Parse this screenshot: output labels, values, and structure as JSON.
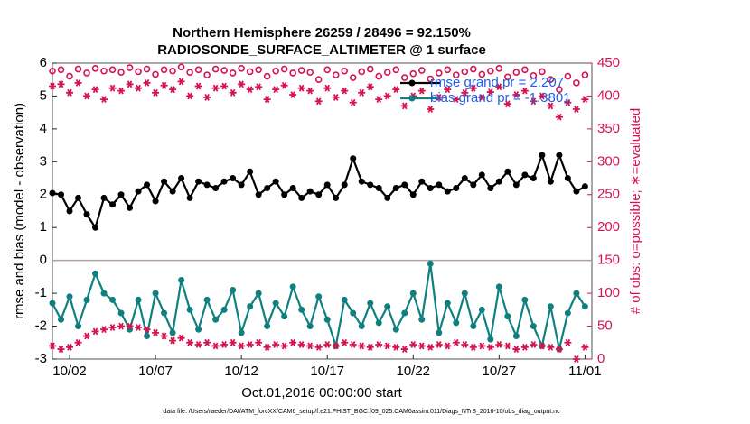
{
  "chart_data": {
    "type": "line",
    "title": "Northern Hemisphere 26259 / 28496 = 92.150%",
    "subtitle": "RADIOSONDE_SURFACE_ALTIMETER @ 1 surface",
    "xlabel": "Oct.01,2016 00:00:00 start",
    "ylabel": "rmse and bias (model - observation)",
    "y2label": "# of obs: o=possible; ∗=evaluated",
    "footnote": "data file: /Users/raeder/DAI/ATM_forcXX/CAM6_setup/f.e21.FHIST_BGC.f09_025.CAM6assim.011/Diags_NTrS_2016-10/obs_diag_output.nc",
    "x": [
      0,
      0.5,
      1,
      1.5,
      2,
      2.5,
      3,
      3.5,
      4,
      4.5,
      5,
      5.5,
      6,
      6.5,
      7,
      7.5,
      8,
      8.5,
      9,
      9.5,
      10,
      10.5,
      11,
      11.5,
      12,
      12.5,
      13,
      13.5,
      14,
      14.5,
      15,
      15.5,
      16,
      16.5,
      17,
      17.5,
      18,
      18.5,
      19,
      19.5,
      20,
      20.5,
      21,
      21.5,
      22,
      22.5,
      23,
      23.5,
      24,
      24.5,
      25,
      25.5,
      26,
      26.5,
      27,
      27.5,
      28,
      28.5,
      29,
      29.5,
      30,
      30.5,
      31
    ],
    "xlim": [
      0,
      31.4
    ],
    "xticks": [
      {
        "value": 1,
        "label": "10/02"
      },
      {
        "value": 6,
        "label": "10/07"
      },
      {
        "value": 11,
        "label": "10/12"
      },
      {
        "value": 16,
        "label": "10/17"
      },
      {
        "value": 21,
        "label": "10/22"
      },
      {
        "value": 26,
        "label": "10/27"
      },
      {
        "value": 31,
        "label": "11/01"
      }
    ],
    "ylim": [
      -3,
      6
    ],
    "yticks": [
      -3,
      -2,
      -1,
      0,
      1,
      2,
      3,
      4,
      5,
      6
    ],
    "y2lim": [
      0,
      450
    ],
    "y2ticks": [
      0,
      50,
      100,
      150,
      200,
      250,
      300,
      350,
      400,
      450
    ],
    "hline": 0,
    "legend": "upper right",
    "series": [
      {
        "name": "rmse grand pr = 2.207",
        "color": "#000000",
        "marker": "o-",
        "values": [
          2.05,
          2.0,
          1.5,
          1.9,
          1.4,
          1.0,
          1.9,
          1.7,
          2.0,
          1.6,
          2.1,
          2.3,
          1.8,
          2.4,
          2.1,
          2.5,
          1.9,
          2.4,
          2.3,
          2.2,
          2.4,
          2.5,
          2.3,
          2.7,
          2.0,
          2.2,
          2.4,
          2.0,
          2.2,
          1.9,
          2.1,
          2.0,
          2.3,
          1.9,
          2.3,
          3.1,
          2.4,
          2.3,
          2.2,
          1.9,
          2.2,
          2.3,
          2.0,
          2.4,
          2.2,
          2.3,
          2.1,
          2.2,
          2.5,
          2.3,
          2.6,
          2.2,
          2.4,
          2.7,
          2.3,
          2.6,
          2.5,
          3.2,
          2.4,
          3.2,
          2.5,
          2.1,
          2.25
        ]
      },
      {
        "name": "bias grand pr = -1.3801",
        "color": "#0f7f7f",
        "marker": "o-",
        "values": [
          -1.3,
          -1.8,
          -1.1,
          -2.0,
          -1.2,
          -0.4,
          -1.0,
          -1.2,
          -1.6,
          -2.1,
          -1.2,
          -2.3,
          -1.0,
          -1.6,
          -2.2,
          -0.6,
          -1.5,
          -2.1,
          -1.2,
          -1.8,
          -1.5,
          -0.9,
          -2.2,
          -1.4,
          -1.0,
          -2.0,
          -1.3,
          -1.7,
          -0.8,
          -1.5,
          -2.0,
          -1.1,
          -1.8,
          -2.6,
          -1.2,
          -1.6,
          -2.0,
          -1.3,
          -1.9,
          -1.4,
          -2.1,
          -1.6,
          -1.0,
          -1.8,
          -0.1,
          -2.2,
          -1.3,
          -1.9,
          -1.0,
          -2.0,
          -1.5,
          -2.4,
          -0.8,
          -1.7,
          -2.3,
          -1.2,
          -2.0,
          -2.6,
          -1.4,
          -2.7,
          -1.6,
          -1.0,
          -1.4
        ]
      },
      {
        "color": "#d6134f",
        "marker": "o",
        "axis": "y2",
        "values": [
          438,
          440,
          430,
          441,
          435,
          442,
          438,
          440,
          436,
          443,
          437,
          441,
          433,
          440,
          438,
          444,
          436,
          440,
          432,
          441,
          439,
          435,
          442,
          437,
          440,
          430,
          438,
          441,
          435,
          439,
          436,
          425,
          440,
          432,
          438,
          428,
          437,
          441,
          430,
          436,
          440,
          428,
          434,
          439,
          426,
          435,
          440,
          432,
          437,
          441,
          433,
          438,
          442,
          429,
          436,
          440,
          431,
          437,
          425,
          410,
          430,
          420,
          432
        ]
      },
      {
        "color": "#d6134f",
        "marker": "*",
        "axis": "y2",
        "values": [
          415,
          418,
          405,
          420,
          400,
          410,
          395,
          412,
          408,
          418,
          412,
          420,
          405,
          416,
          410,
          422,
          400,
          415,
          398,
          412,
          415,
          405,
          418,
          410,
          414,
          395,
          410,
          416,
          402,
          412,
          408,
          392,
          412,
          398,
          408,
          390,
          405,
          414,
          395,
          400,
          410,
          385,
          400,
          408,
          380,
          398,
          410,
          395,
          405,
          412,
          398,
          406,
          414,
          388,
          402,
          408,
          392,
          400,
          385,
          368,
          390,
          380,
          395
        ]
      },
      {
        "color": "#d6134f",
        "marker": "*",
        "axis": "y2",
        "values": [
          20,
          15,
          18,
          25,
          35,
          42,
          45,
          48,
          50,
          50,
          48,
          45,
          40,
          35,
          28,
          32,
          25,
          22,
          25,
          20,
          22,
          25,
          20,
          22,
          25,
          18,
          22,
          20,
          25,
          22,
          20,
          18,
          22,
          20,
          25,
          22,
          20,
          18,
          22,
          20,
          18,
          15,
          22,
          20,
          18,
          22,
          20,
          25,
          22,
          18,
          20,
          18,
          22,
          20,
          15,
          18,
          22,
          20,
          18,
          15,
          25,
          0,
          18
        ]
      }
    ]
  }
}
